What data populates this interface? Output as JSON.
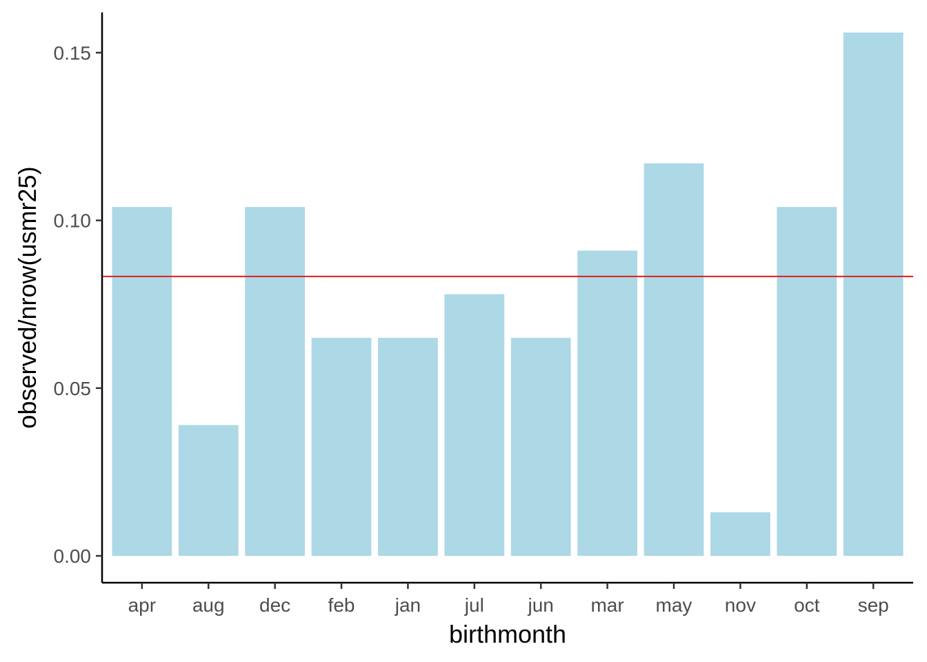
{
  "chart_data": {
    "type": "bar",
    "xlabel": "birthmonth",
    "ylabel": "observed/nrow(usmr25)",
    "categories": [
      "apr",
      "aug",
      "dec",
      "feb",
      "jan",
      "jul",
      "jun",
      "mar",
      "may",
      "nov",
      "oct",
      "sep"
    ],
    "values": [
      0.104,
      0.039,
      0.104,
      0.065,
      0.065,
      0.078,
      0.065,
      0.091,
      0.117,
      0.013,
      0.104,
      0.156
    ],
    "ylim": [
      -0.008,
      0.162
    ],
    "yticks": [
      0.0,
      0.05,
      0.1,
      0.15
    ],
    "ytick_labels": [
      "0.00",
      "0.05",
      "0.10",
      "0.15"
    ],
    "reference_line": {
      "value": 0.0833,
      "color": "#e31a1c"
    },
    "bar_color": "#add8e6",
    "grid": false
  }
}
